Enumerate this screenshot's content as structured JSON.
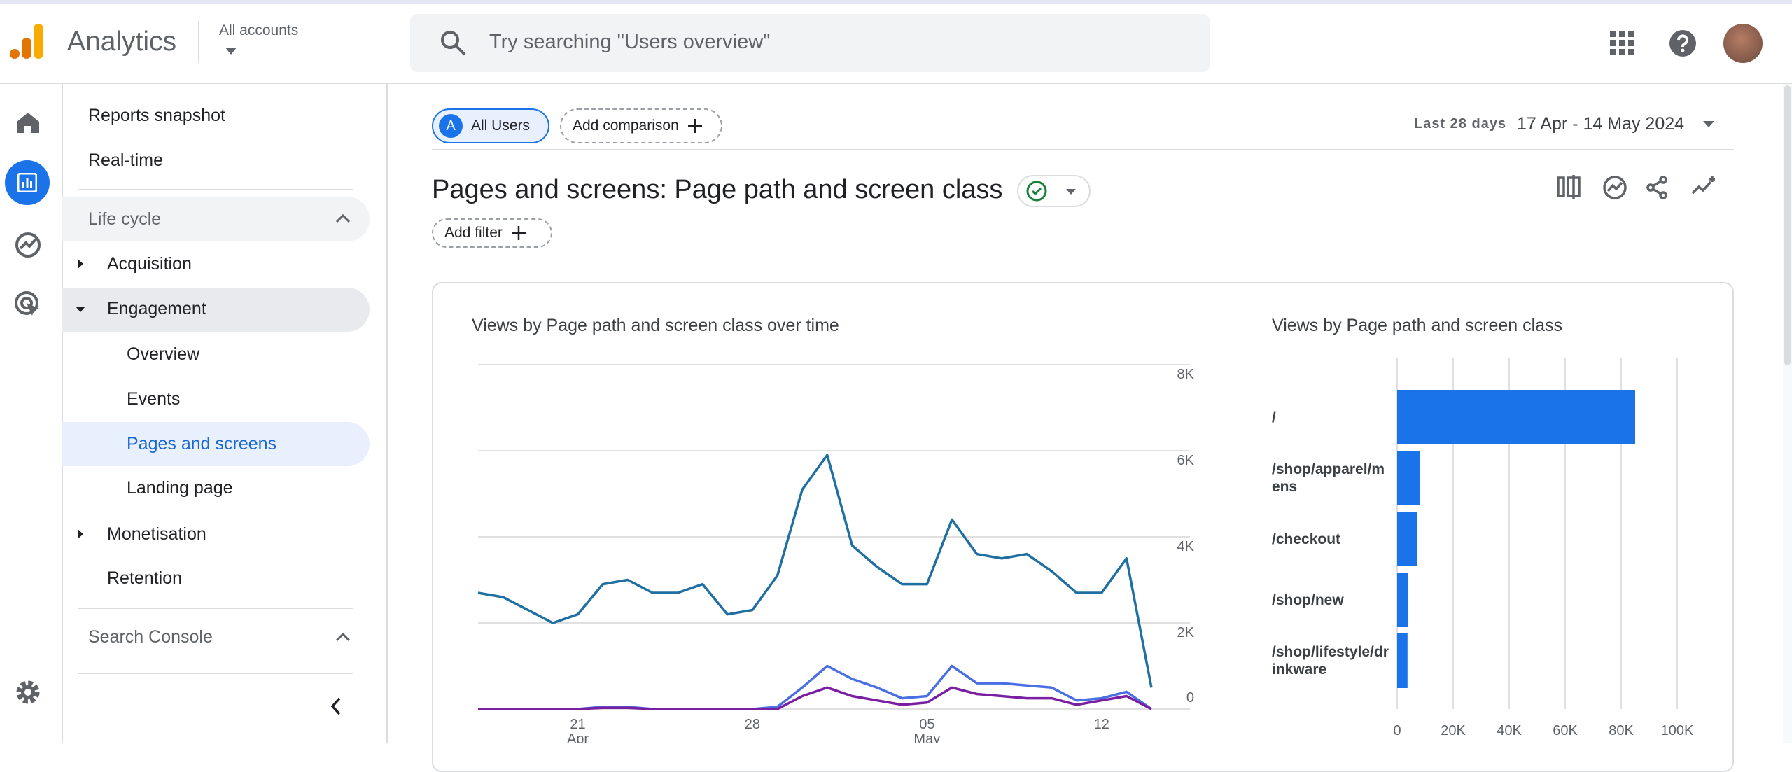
{
  "header": {
    "app_name": "Analytics",
    "account_label": "All accounts",
    "search_placeholder": "Try searching \"Users overview\""
  },
  "nav": {
    "items": [
      "Reports snapshot",
      "Real-time",
      "Life cycle",
      "Acquisition",
      "Engagement",
      "Overview",
      "Events",
      "Pages and screens",
      "Landing page",
      "Monetisation",
      "Retention",
      "Search Console"
    ]
  },
  "toolbar": {
    "segment_letter": "A",
    "segment": "All Users",
    "add_comparison": "Add comparison",
    "date_range_label": "Last 28 days",
    "date_range": "17 Apr - 14 May 2024"
  },
  "page_title": "Pages and screens: Page path and screen class",
  "add_filter": "Add filter",
  "chart_data": [
    {
      "type": "line",
      "title": "Views by Page path and screen class over time",
      "categories": [
        null,
        null,
        null,
        null,
        "21",
        null,
        null,
        null,
        null,
        null,
        null,
        "28",
        null,
        null,
        null,
        null,
        null,
        null,
        "05",
        null,
        null,
        null,
        null,
        null,
        null,
        "12",
        null,
        null
      ],
      "category_months": [
        null,
        null,
        null,
        null,
        "Apr",
        null,
        null,
        null,
        null,
        null,
        null,
        null,
        null,
        null,
        null,
        null,
        null,
        null,
        "May",
        null,
        null,
        null,
        null,
        null,
        null,
        null,
        null,
        null
      ],
      "series": [
        {
          "color": "#1f6fa3",
          "values": [
            2700,
            2600,
            2300,
            2000,
            2200,
            2900,
            3000,
            2700,
            2700,
            2900,
            2200,
            2300,
            3100,
            5100,
            5900,
            3800,
            3300,
            2900,
            2900,
            4400,
            3600,
            3500,
            3600,
            3200,
            2700,
            2700,
            3500,
            500
          ]
        },
        {
          "color": "#4a6fe3",
          "values": [
            0,
            0,
            0,
            0,
            0,
            50,
            50,
            0,
            0,
            0,
            0,
            0,
            50,
            500,
            1000,
            700,
            500,
            250,
            300,
            1000,
            600,
            600,
            550,
            500,
            200,
            250,
            400,
            0
          ]
        },
        {
          "color": "#7b1fa2",
          "values": [
            0,
            0,
            0,
            0,
            0,
            30,
            30,
            0,
            0,
            0,
            0,
            0,
            0,
            300,
            500,
            300,
            200,
            100,
            150,
            500,
            350,
            300,
            250,
            250,
            100,
            200,
            300,
            0
          ]
        }
      ],
      "ylim": [
        0,
        8000
      ],
      "yticks": [
        0,
        {
          "value": 2000,
          "label": "2K"
        },
        {
          "value": 4000,
          "label": "4K"
        },
        {
          "value": 6000,
          "label": "6K"
        },
        {
          "value": 8000,
          "label": "8K"
        }
      ],
      "grid": true
    },
    {
      "type": "bar",
      "orientation": "horizontal",
      "title": "Views by Page path and screen class",
      "categories": [
        "/",
        "/shop/apparel/mens",
        "/checkout",
        "/shop/new",
        "/shop/lifestyle/drinkware"
      ],
      "values": [
        85000,
        8000,
        7000,
        4000,
        3700
      ],
      "color": "#1a73e8",
      "xlim": [
        0,
        100000
      ],
      "xticks": [
        0,
        {
          "value": 20000,
          "label": "20K"
        },
        {
          "value": 40000,
          "label": "40K"
        },
        {
          "value": 60000,
          "label": "60K"
        },
        {
          "value": 80000,
          "label": "80K"
        },
        {
          "value": 100000,
          "label": "100K"
        }
      ],
      "grid": true
    }
  ]
}
